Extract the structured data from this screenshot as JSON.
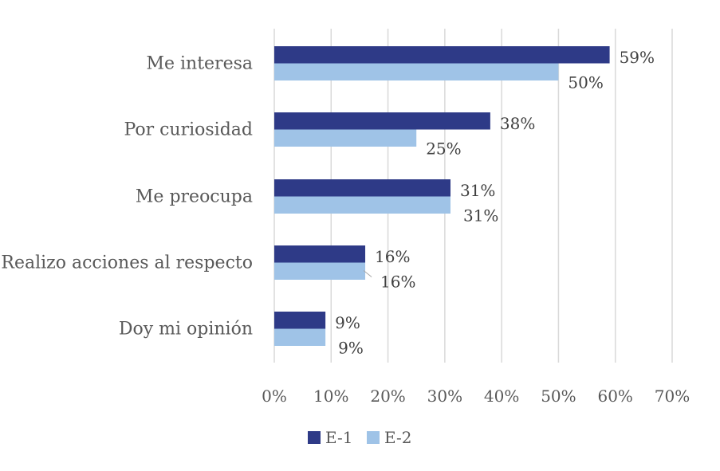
{
  "chart_data": {
    "type": "bar",
    "orientation": "horizontal",
    "categories": [
      "Me interesa",
      "Por curiosidad",
      "Me preocupa",
      "Realizo acciones al respecto",
      "Doy mi opinión"
    ],
    "series": [
      {
        "name": "E-1",
        "values": [
          59,
          38,
          31,
          16,
          9
        ],
        "labels": [
          "59%",
          "38%",
          "31%",
          "16%",
          "9%"
        ],
        "color": "#2e3a87"
      },
      {
        "name": "E-2",
        "values": [
          50,
          25,
          31,
          16,
          9
        ],
        "labels": [
          "50%",
          "25%",
          "31%",
          "16%",
          "9%"
        ],
        "color": "#9fc3e7"
      }
    ],
    "xlim": [
      0,
      70
    ],
    "xticks": [
      0,
      10,
      20,
      30,
      40,
      50,
      60,
      70
    ],
    "xtick_labels": [
      "0%",
      "10%",
      "20%",
      "30%",
      "40%",
      "50%",
      "60%",
      "70%"
    ],
    "grid": "vertical",
    "legend": "bottom",
    "title": "",
    "xlabel": "",
    "ylabel": ""
  }
}
